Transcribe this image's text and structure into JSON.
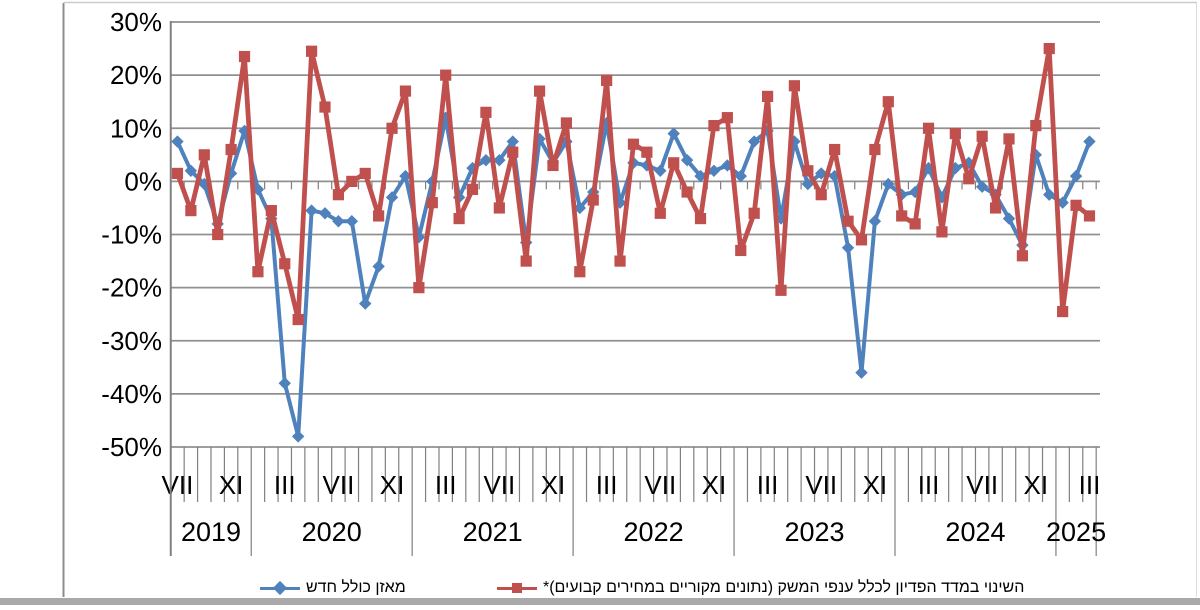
{
  "chart_data": {
    "type": "line",
    "title": "",
    "start_year": 2019,
    "start_month": 7,
    "end_year": 2025,
    "end_month": 3,
    "ylim": [
      -50,
      30
    ],
    "ytick_step": 10,
    "ytick_labels": [
      "30%",
      "20%",
      "10%",
      "0%",
      "-10%",
      "-20%",
      "-30%",
      "-40%",
      "-50%"
    ],
    "grid": true,
    "legend_position": "bottom",
    "month_roman_labels": {
      "3": "III",
      "7": "VII",
      "11": "XI"
    },
    "year_labels": [
      "2019",
      "2020",
      "2021",
      "2022",
      "2023",
      "2024",
      "2025"
    ],
    "colors": {
      "balance": "#4f81bd",
      "revenue": "#c0504d",
      "grid": "#909090",
      "axis": "#808080"
    },
    "series": [
      {
        "name": "מאזן כולל חדש",
        "marker": "diamond",
        "color": "#4f81bd",
        "values": [
          7.5,
          2,
          -0.5,
          -8,
          1.5,
          9.5,
          -1.5,
          -7,
          -38,
          -48,
          -5.5,
          -6,
          -7.5,
          -7.5,
          -23,
          -16,
          -3,
          1,
          -10.5,
          0,
          12,
          -3,
          2.5,
          4,
          4,
          7.5,
          -11.5,
          8,
          3.5,
          7.5,
          -5,
          -2,
          11,
          -4,
          3.5,
          3,
          2,
          9,
          4,
          1,
          2,
          3,
          1,
          7.5,
          9.5,
          -7,
          7.5,
          -0.5,
          1.5,
          1,
          -12.5,
          -36,
          -7.5,
          -0.5,
          -2.5,
          -2,
          2.5,
          -3,
          2.5,
          3.5,
          -1,
          -2.5,
          -7,
          -12,
          5,
          -2.5,
          -4,
          1,
          7.5
        ]
      },
      {
        "name": "השינוי במדד הפדיון לכלל ענפי המשק (נתונים מקוריים במחירים קבועים)*",
        "marker": "square",
        "color": "#c0504d",
        "values": [
          1.5,
          -5.5,
          5,
          -10,
          6,
          23.5,
          -17,
          -5.5,
          -15.5,
          -26,
          24.5,
          14,
          -2.5,
          0,
          1.5,
          -6.5,
          10,
          17,
          -20,
          -4,
          20,
          -7,
          -1.5,
          13,
          -5,
          5.5,
          -15,
          17,
          3,
          11,
          -17,
          -3.5,
          19,
          -15,
          7,
          5.5,
          -6,
          3.5,
          -2,
          -7,
          10.5,
          12,
          -13,
          -6,
          16,
          -20.5,
          18,
          2,
          -2.5,
          6,
          -7.5,
          -11,
          6,
          15,
          -6.5,
          -8,
          10,
          -9.5,
          9,
          0.5,
          8.5,
          -5,
          8,
          -14,
          10.5,
          25,
          -24.5,
          -4.5,
          -6.5
        ]
      }
    ]
  }
}
